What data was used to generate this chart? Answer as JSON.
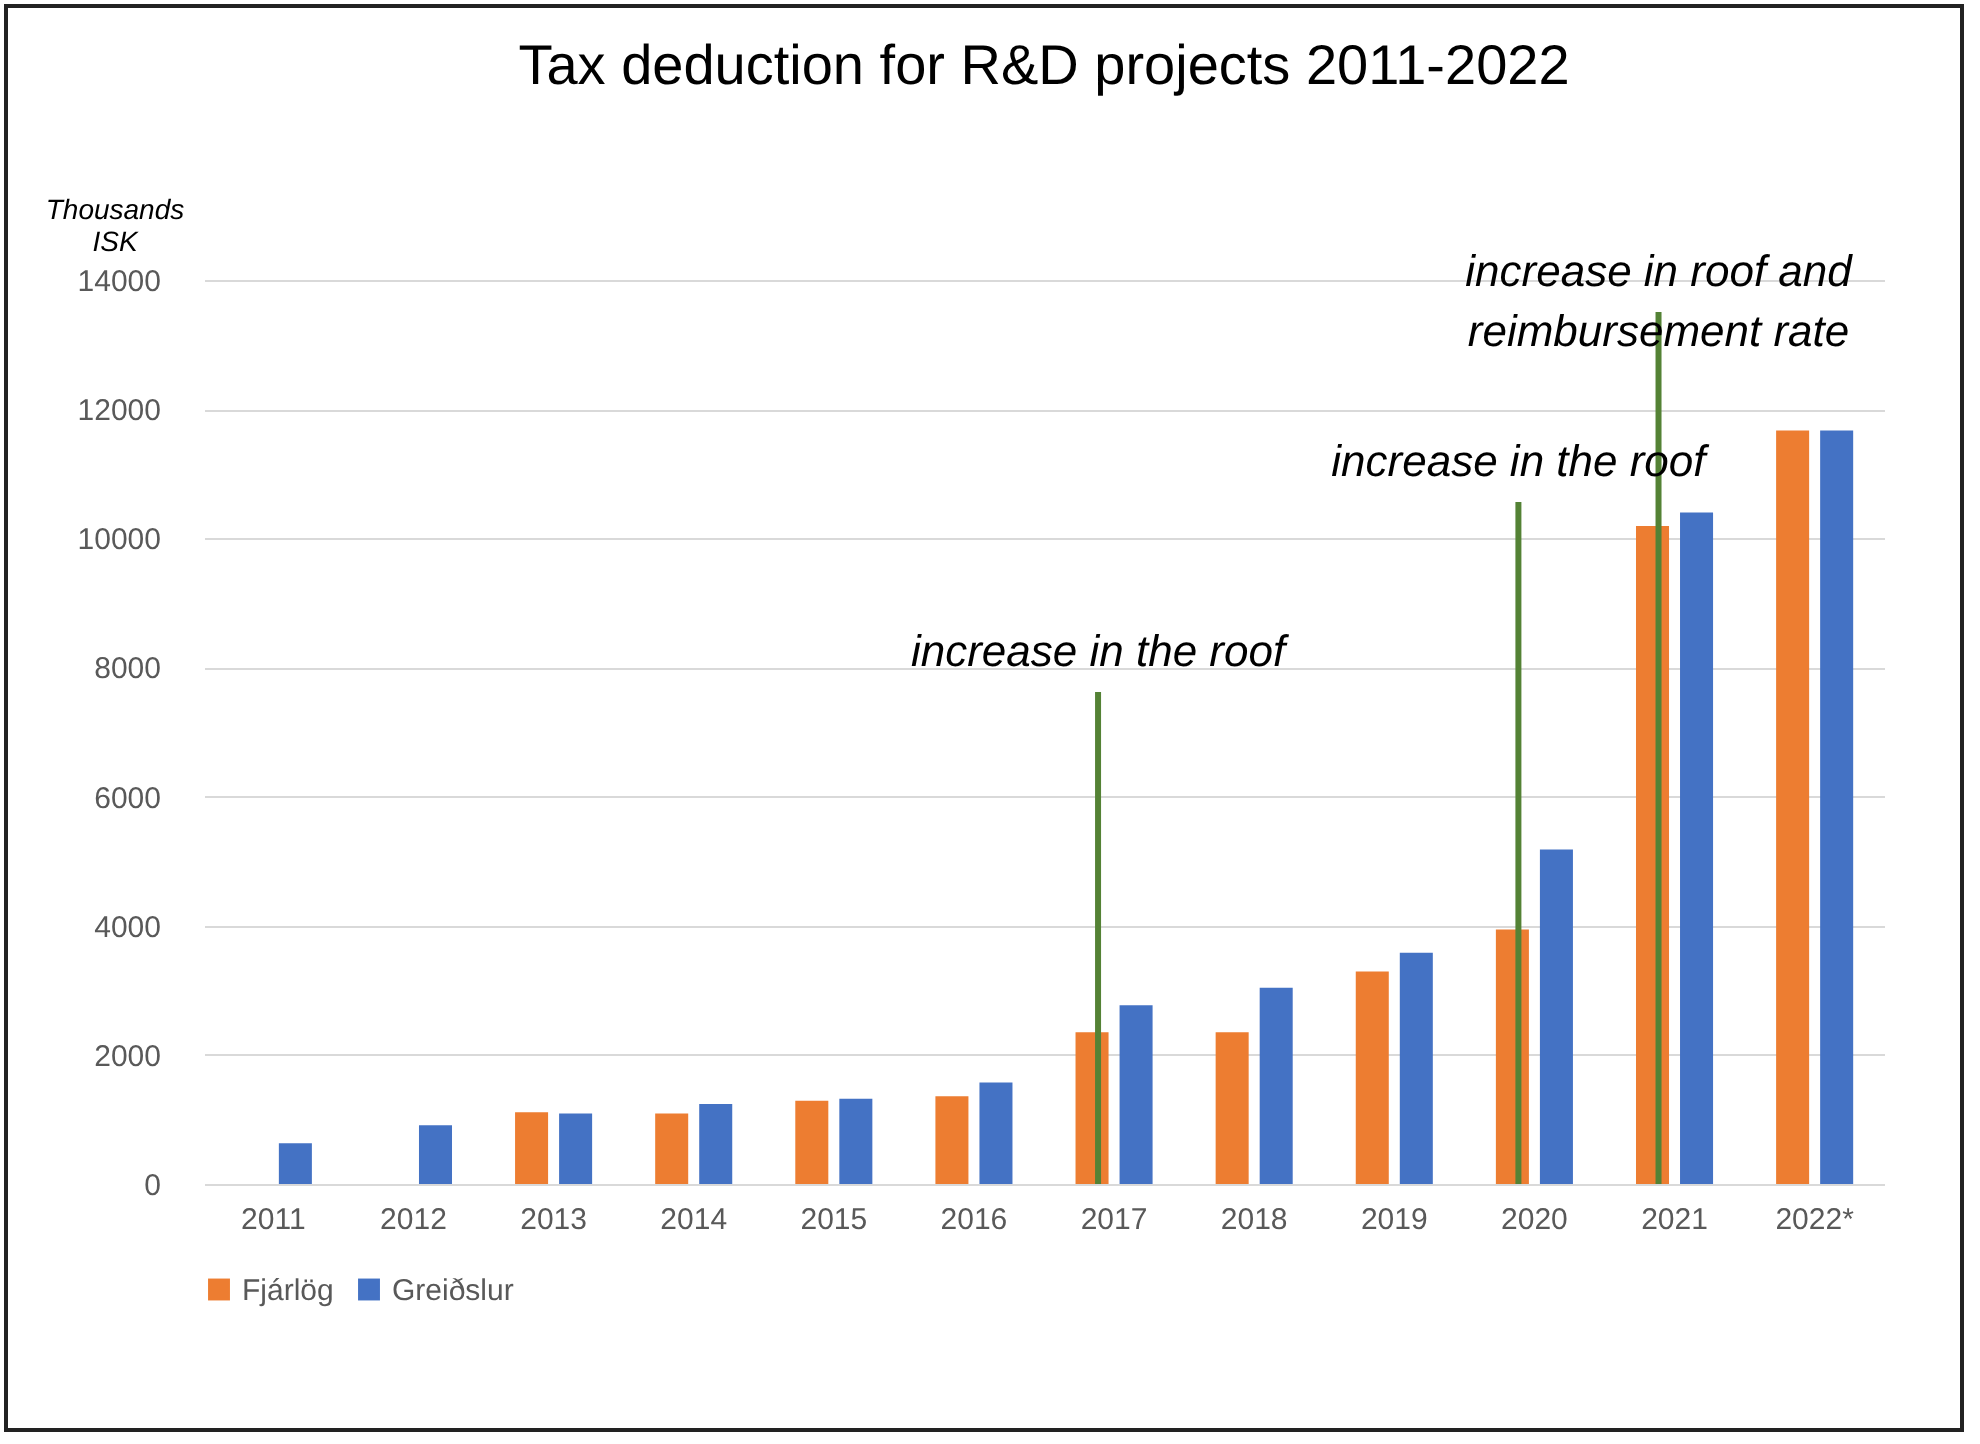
{
  "chart_data": {
    "type": "bar",
    "title": "Tax deduction for R&D projects 2011-2022",
    "ylabel": "Thousands\nISK",
    "categories": [
      "2011",
      "2012",
      "2013",
      "2014",
      "2015",
      "2016",
      "2017",
      "2018",
      "2019",
      "2020",
      "2021",
      "2022*"
    ],
    "series": [
      {
        "name": "Fjárlög",
        "color": "#ed7d31",
        "values": [
          null,
          null,
          1110,
          1090,
          1290,
          1360,
          2350,
          2350,
          3290,
          3940,
          10190,
          11670
        ]
      },
      {
        "name": "Greiðslur",
        "color": "#4472c4",
        "values": [
          630,
          910,
          1090,
          1240,
          1320,
          1570,
          2770,
          3040,
          3580,
          5180,
          10400,
          11670
        ]
      }
    ],
    "ylim": [
      0,
      14000
    ],
    "yticks": [
      0,
      2000,
      4000,
      6000,
      8000,
      10000,
      12000,
      14000
    ],
    "grid": "y",
    "legend": "bottom",
    "ref_lines": [
      {
        "axis": "x",
        "value": "2017",
        "color": "#548235",
        "label": "increase in the roof"
      },
      {
        "axis": "x",
        "value": "2020",
        "color": "#548235",
        "label": "increase in the roof"
      },
      {
        "axis": "x",
        "value": "2021",
        "color": "#548235",
        "label": "increase in roof and\nreimbursement rate"
      }
    ]
  }
}
